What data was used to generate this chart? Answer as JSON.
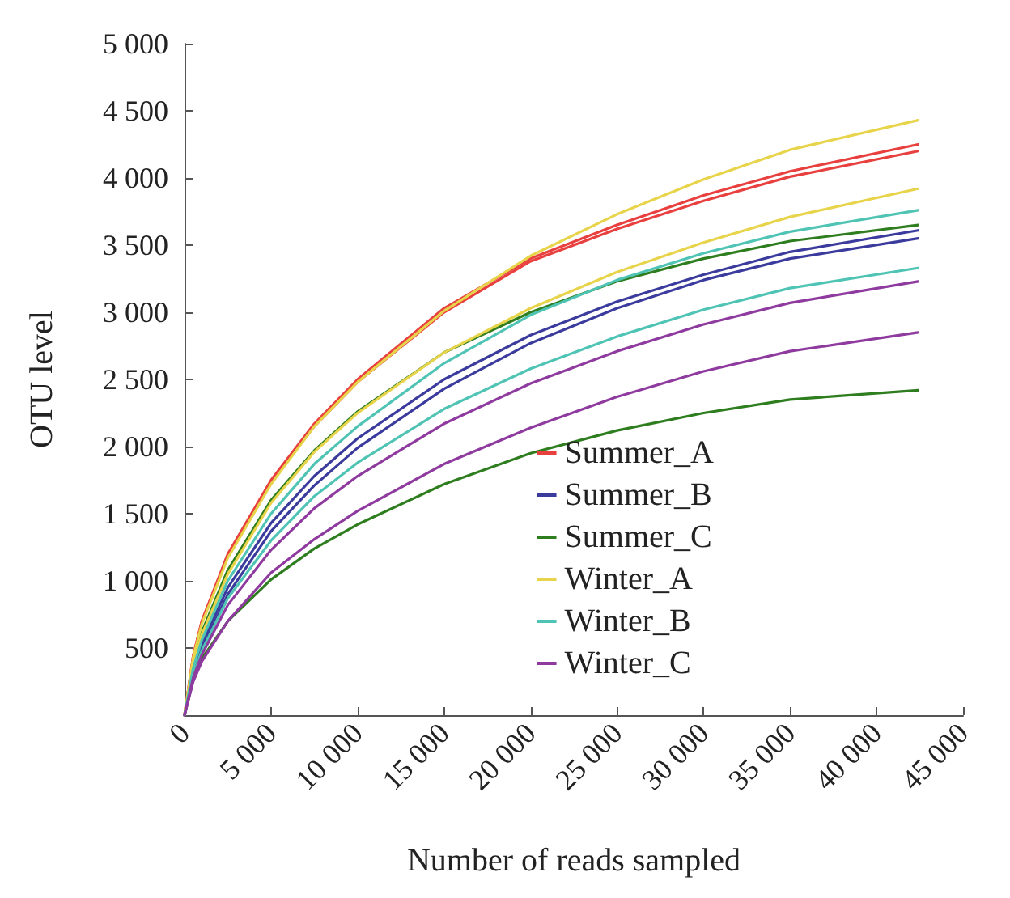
{
  "chart_data": {
    "type": "line",
    "xlabel": "Number of reads sampled",
    "ylabel": "OTU level",
    "x": [
      0,
      500,
      1000,
      2500,
      5000,
      7500,
      10000,
      15000,
      20000,
      25000,
      30000,
      35000,
      42400
    ],
    "series": [
      {
        "name": "Summer_A",
        "color": "#e8403f",
        "values": [
          0,
          440,
          700,
          1200,
          1750,
          2170,
          2500,
          3030,
          3400,
          3650,
          3870,
          4050,
          4250
        ]
      },
      {
        "color": "#e8403f",
        "values": [
          0,
          440,
          700,
          1190,
          1740,
          2150,
          2480,
          3000,
          3380,
          3620,
          3830,
          4010,
          4200
        ]
      },
      {
        "name": "Summer_B",
        "color": "#3b3b9e",
        "values": [
          0,
          330,
          530,
          950,
          1430,
          1780,
          2060,
          2500,
          2830,
          3080,
          3280,
          3450,
          3610
        ]
      },
      {
        "color": "#3b3b9e",
        "values": [
          0,
          310,
          500,
          900,
          1370,
          1710,
          1990,
          2430,
          2770,
          3030,
          3240,
          3400,
          3550
        ]
      },
      {
        "name": "Summer_C",
        "color": "#2e7d1e",
        "values": [
          0,
          390,
          620,
          1080,
          1600,
          1970,
          2260,
          2700,
          3000,
          3230,
          3400,
          3530,
          3650
        ]
      },
      {
        "color": "#2e7d1e",
        "values": [
          0,
          260,
          420,
          700,
          1010,
          1240,
          1420,
          1720,
          1950,
          2120,
          2250,
          2350,
          2420
        ]
      },
      {
        "name": "Winter_A",
        "color": "#e8d44a",
        "values": [
          0,
          430,
          680,
          1170,
          1720,
          2150,
          2480,
          3010,
          3420,
          3730,
          3990,
          4210,
          4430
        ]
      },
      {
        "color": "#e8d44a",
        "values": [
          0,
          380,
          600,
          1050,
          1580,
          1960,
          2250,
          2700,
          3030,
          3300,
          3520,
          3710,
          3920
        ]
      },
      {
        "name": "Winter_B",
        "color": "#4fc4b4",
        "values": [
          0,
          350,
          560,
          1000,
          1500,
          1870,
          2150,
          2620,
          2980,
          3240,
          3440,
          3600,
          3760
        ]
      },
      {
        "color": "#4fc4b4",
        "values": [
          0,
          300,
          480,
          870,
          1300,
          1630,
          1880,
          2280,
          2580,
          2820,
          3020,
          3180,
          3330
        ]
      },
      {
        "name": "Winter_C",
        "color": "#8e3a9e",
        "values": [
          0,
          280,
          450,
          820,
          1230,
          1540,
          1780,
          2170,
          2470,
          2710,
          2910,
          3070,
          3230
        ]
      },
      {
        "color": "#8e3a9e",
        "values": [
          0,
          250,
          400,
          700,
          1060,
          1310,
          1520,
          1870,
          2140,
          2370,
          2560,
          2710,
          2850
        ]
      }
    ],
    "xlim": [
      0,
      45000
    ],
    "xticks": [
      0,
      {
        "value": 5000,
        "label": "5 000"
      },
      {
        "value": 10000,
        "label": "10 000"
      },
      {
        "value": 15000,
        "label": "15 000"
      },
      {
        "value": 20000,
        "label": "20 000"
      },
      {
        "value": 25000,
        "label": "25 000"
      },
      {
        "value": 30000,
        "label": "30 000"
      },
      {
        "value": 35000,
        "label": "35 000"
      },
      {
        "value": 40000,
        "label": "40 000"
      },
      {
        "value": 45000,
        "label": "45 000"
      }
    ],
    "ylim": [
      0,
      5000
    ],
    "yticks": [
      500,
      {
        "value": 1000,
        "label": "1 000"
      },
      {
        "value": 1500,
        "label": "1 500"
      },
      {
        "value": 2000,
        "label": "2 000"
      },
      {
        "value": 2500,
        "label": "2 500"
      },
      {
        "value": 3000,
        "label": "3 000"
      },
      {
        "value": 3500,
        "label": "3 500"
      },
      {
        "value": 4000,
        "label": "4 000"
      },
      {
        "value": 4500,
        "label": "4 500"
      },
      {
        "value": 5000,
        "label": "5 000"
      }
    ],
    "grid": false,
    "legend": "bottom right",
    "marker": "none",
    "line_style": "solid"
  }
}
